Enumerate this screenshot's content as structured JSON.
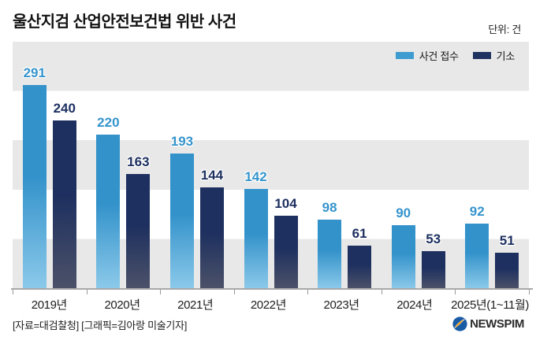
{
  "header": {
    "title": "울산지검 산업안전보건법 위반 사건",
    "unit": "단위: 건"
  },
  "legend": [
    {
      "label": "사건 접수",
      "color": "#3e9cd1"
    },
    {
      "label": "기소",
      "color": "#1e3360"
    }
  ],
  "chart_data": {
    "type": "bar",
    "categories": [
      "2019년",
      "2020년",
      "2021년",
      "2022년",
      "2023년",
      "2024년",
      "2025년(1~11월)"
    ],
    "series": [
      {
        "name": "사건 접수",
        "values": [
          291,
          220,
          193,
          142,
          98,
          90,
          92
        ],
        "color_top": "#3392ca",
        "color_bottom": "#8bc9ea",
        "label_color": "#3594cc"
      },
      {
        "name": "기소",
        "values": [
          240,
          163,
          144,
          104,
          61,
          53,
          51
        ],
        "color_top": "#1e3060",
        "color_bottom": "#4b5168",
        "label_color": "#1d3060"
      }
    ],
    "title": "울산지검 산업안전보건법 위반 사건",
    "xlabel": "",
    "ylabel": "건",
    "ylim": [
      0,
      300
    ],
    "grid": "horizontal-bands",
    "legend_position": "top-right",
    "value_labels": "above-bars"
  },
  "footer": {
    "source": "[자료=대검찰청] [그래픽=김아랑 미술기자]",
    "logo_text": "NEWSPIM"
  },
  "colors": {
    "stripe": "#e8e8e8",
    "axis": "#a8a8a8",
    "logo_circle": "#1a5ba5",
    "logo_swoosh": "#f4a11d"
  }
}
